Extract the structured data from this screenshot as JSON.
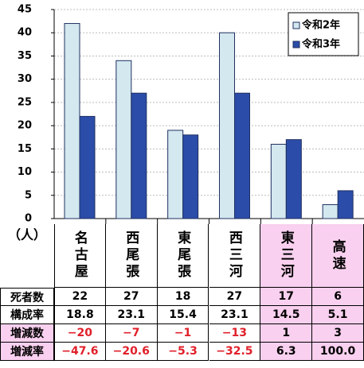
{
  "chart_data": {
    "type": "bar",
    "ylabel": "（人）",
    "categories": [
      "名古屋",
      "西尾張",
      "東尾張",
      "西三河",
      "東三河",
      "高速"
    ],
    "series": [
      {
        "name": "令和2年",
        "color": "#d3e8ef",
        "values": [
          42,
          34,
          19,
          40,
          16,
          3
        ]
      },
      {
        "name": "令和3年",
        "color": "#2b4ca8",
        "values": [
          22,
          27,
          18,
          27,
          17,
          6
        ]
      }
    ],
    "ylim": [
      0,
      45
    ],
    "yticks": [
      0,
      5,
      10,
      15,
      20,
      25,
      30,
      35,
      40,
      45
    ],
    "grid": true,
    "legend": "upper right"
  },
  "table": {
    "rows": [
      {
        "label": "死者数"
      },
      {
        "label": "構成率",
        "cells": [
          "18.8",
          "23.1",
          "15.4",
          "23.1",
          "14.5",
          "5.1"
        ]
      },
      {
        "label": "増減数",
        "cells": [
          "−20",
          "−7",
          "−1",
          "−13",
          "1",
          "3"
        ]
      },
      {
        "label": "増減率",
        "cells": [
          "−47.6",
          "−20.6",
          "−5.3",
          "−32.5",
          "6.3",
          "100.0"
        ]
      }
    ]
  }
}
